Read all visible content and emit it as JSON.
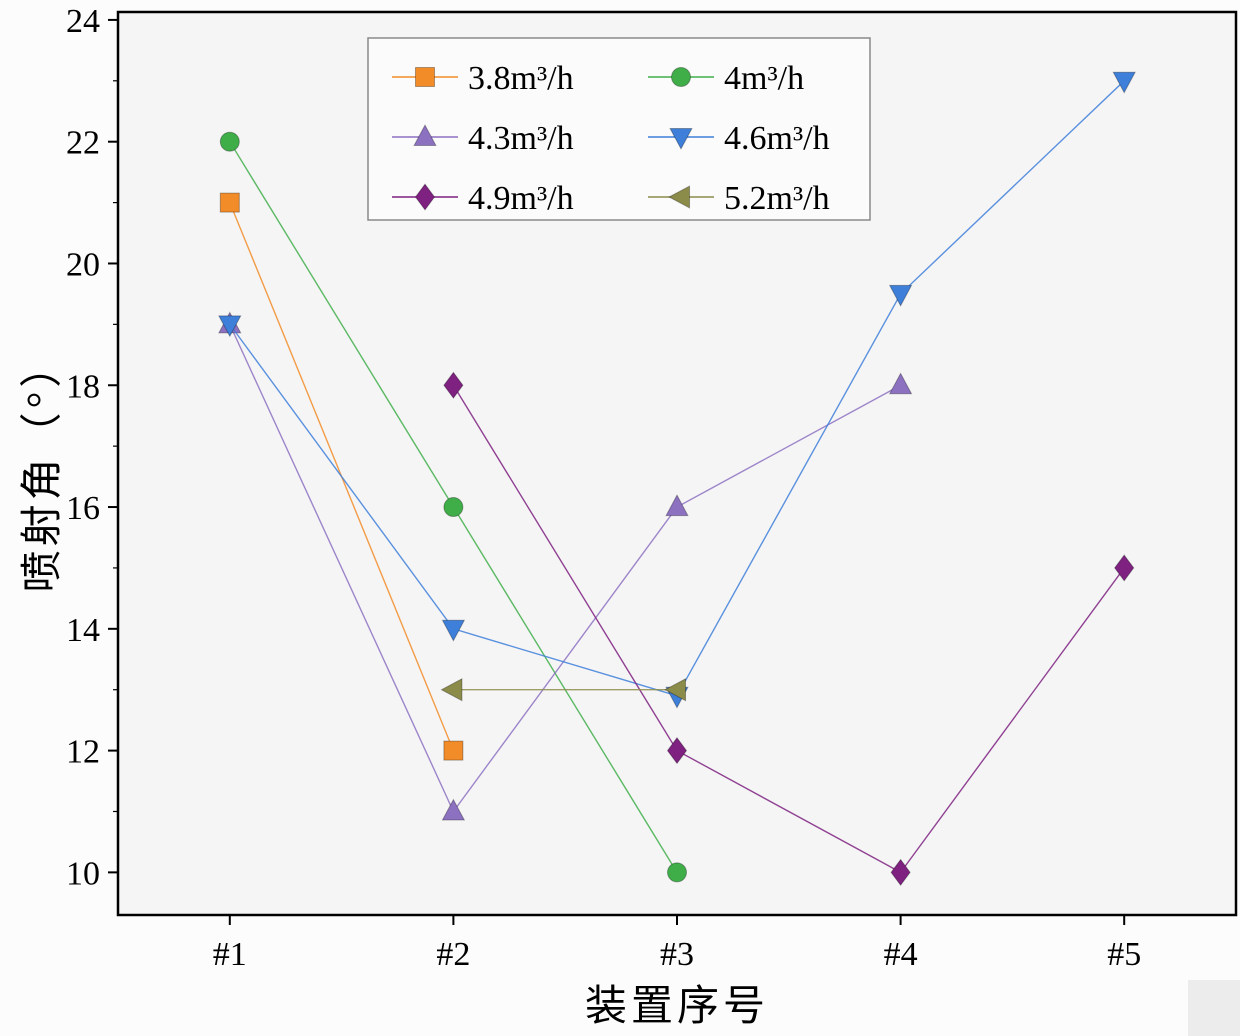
{
  "chart_data": {
    "type": "line",
    "title": "",
    "xlabel": "装置序号",
    "ylabel": "喷射角（°）",
    "categories": [
      "#1",
      "#2",
      "#3",
      "#4",
      "#5"
    ],
    "ylim": [
      9.3,
      24.13
    ],
    "yticks": [
      10,
      12,
      14,
      16,
      18,
      20,
      22,
      24
    ],
    "grid": false,
    "legend_position": "top-center",
    "series": [
      {
        "name": "3.8m³/h",
        "color": "#F28C28",
        "marker": "square",
        "points": [
          [
            1,
            21
          ],
          [
            2,
            12
          ]
        ]
      },
      {
        "name": "4m³/h",
        "color": "#3FAE49",
        "marker": "circle",
        "points": [
          [
            1,
            22
          ],
          [
            2,
            16
          ],
          [
            3,
            10
          ]
        ]
      },
      {
        "name": "4.3m³/h",
        "color": "#8D71C1",
        "marker": "triangle-up",
        "points": [
          [
            1,
            19
          ],
          [
            2,
            11
          ],
          [
            3,
            16
          ],
          [
            4,
            18
          ]
        ]
      },
      {
        "name": "4.6m³/h",
        "color": "#3E7FD9",
        "marker": "triangle-down",
        "points": [
          [
            1,
            19
          ],
          [
            2,
            14
          ],
          [
            3,
            12.9
          ],
          [
            4,
            19.5
          ],
          [
            5,
            23
          ]
        ]
      },
      {
        "name": "4.9m³/h",
        "color": "#7E2180",
        "marker": "diamond",
        "points": [
          [
            2,
            18
          ],
          [
            3,
            12
          ],
          [
            4,
            10
          ],
          [
            5,
            15
          ]
        ]
      },
      {
        "name": "5.2m³/h",
        "color": "#8C8C4A",
        "marker": "triangle-left",
        "points": [
          [
            2,
            13
          ],
          [
            3,
            13
          ]
        ]
      }
    ]
  }
}
